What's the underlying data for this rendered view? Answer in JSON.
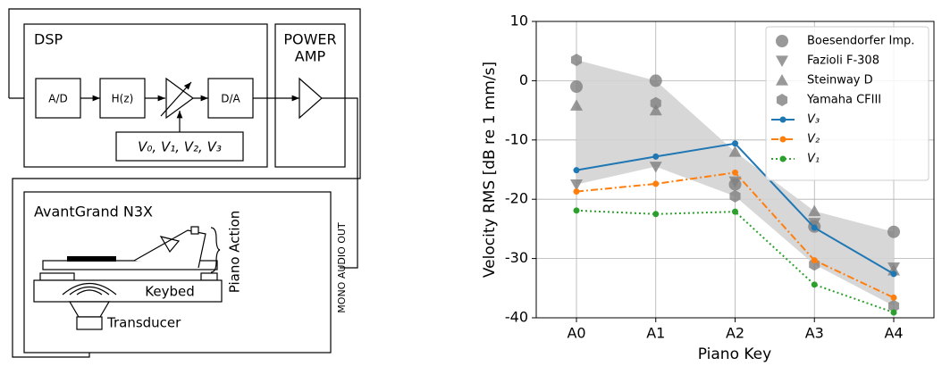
{
  "diagram": {
    "dsp": "DSP",
    "power_amp": [
      "POWER",
      "AMP"
    ],
    "ad": "A/D",
    "hz": "H(z)",
    "da": "D/A",
    "variants": "V₀, V₁, V₂, V₃",
    "instrument": "AvantGrand N3X",
    "keybed": "Keybed",
    "transducer": "Transducer",
    "piano_action": "Piano Action",
    "audio_out": "MONO AUDIO OUT"
  },
  "chart_data": {
    "type": "line",
    "xlabel": "Piano Key",
    "ylabel": "Velocity RMS [dB re 1 mm/s]",
    "categories": [
      "A0",
      "A1",
      "A2",
      "A3",
      "A4"
    ],
    "ylim": [
      -40,
      10
    ],
    "yticks": [
      -40,
      -30,
      -20,
      -10,
      0,
      10
    ],
    "grid": true,
    "band": true,
    "legend": "upper right",
    "series": [
      {
        "name": "Boesendorfer Imp.",
        "type": "scatter",
        "marker": "o",
        "color": "#808080",
        "values": [
          -1.0,
          0.0,
          -17.5,
          -24.6,
          -25.5
        ]
      },
      {
        "name": "Fazioli F-308",
        "type": "scatter",
        "marker": "v",
        "color": "#808080",
        "values": [
          -17.5,
          -14.5,
          -17.0,
          -24.0,
          -31.5
        ]
      },
      {
        "name": "Steinway D",
        "type": "scatter",
        "marker": "^",
        "color": "#808080",
        "values": [
          -4.2,
          -5.0,
          -12.0,
          -22.0,
          -32.0
        ]
      },
      {
        "name": "Yamaha CFIII",
        "type": "scatter",
        "marker": "h",
        "color": "#808080",
        "values": [
          3.5,
          -3.8,
          -19.5,
          -31.0,
          -38.0
        ]
      },
      {
        "name": "V₃",
        "type": "line",
        "style": "solid",
        "marker": "o",
        "color": "#1f77b4",
        "values": [
          -15.1,
          -12.8,
          -10.6,
          -24.8,
          -32.6
        ]
      },
      {
        "name": "V₂",
        "type": "line",
        "style": "dashdot",
        "marker": "o",
        "color": "#ff7f0e",
        "values": [
          -18.7,
          -17.4,
          -15.5,
          -30.3,
          -36.6
        ]
      },
      {
        "name": "V₁",
        "type": "line",
        "style": "dotted",
        "marker": "o",
        "color": "#2ca02c",
        "values": [
          -21.9,
          -22.5,
          -22.1,
          -34.4,
          -39.1
        ]
      }
    ]
  }
}
